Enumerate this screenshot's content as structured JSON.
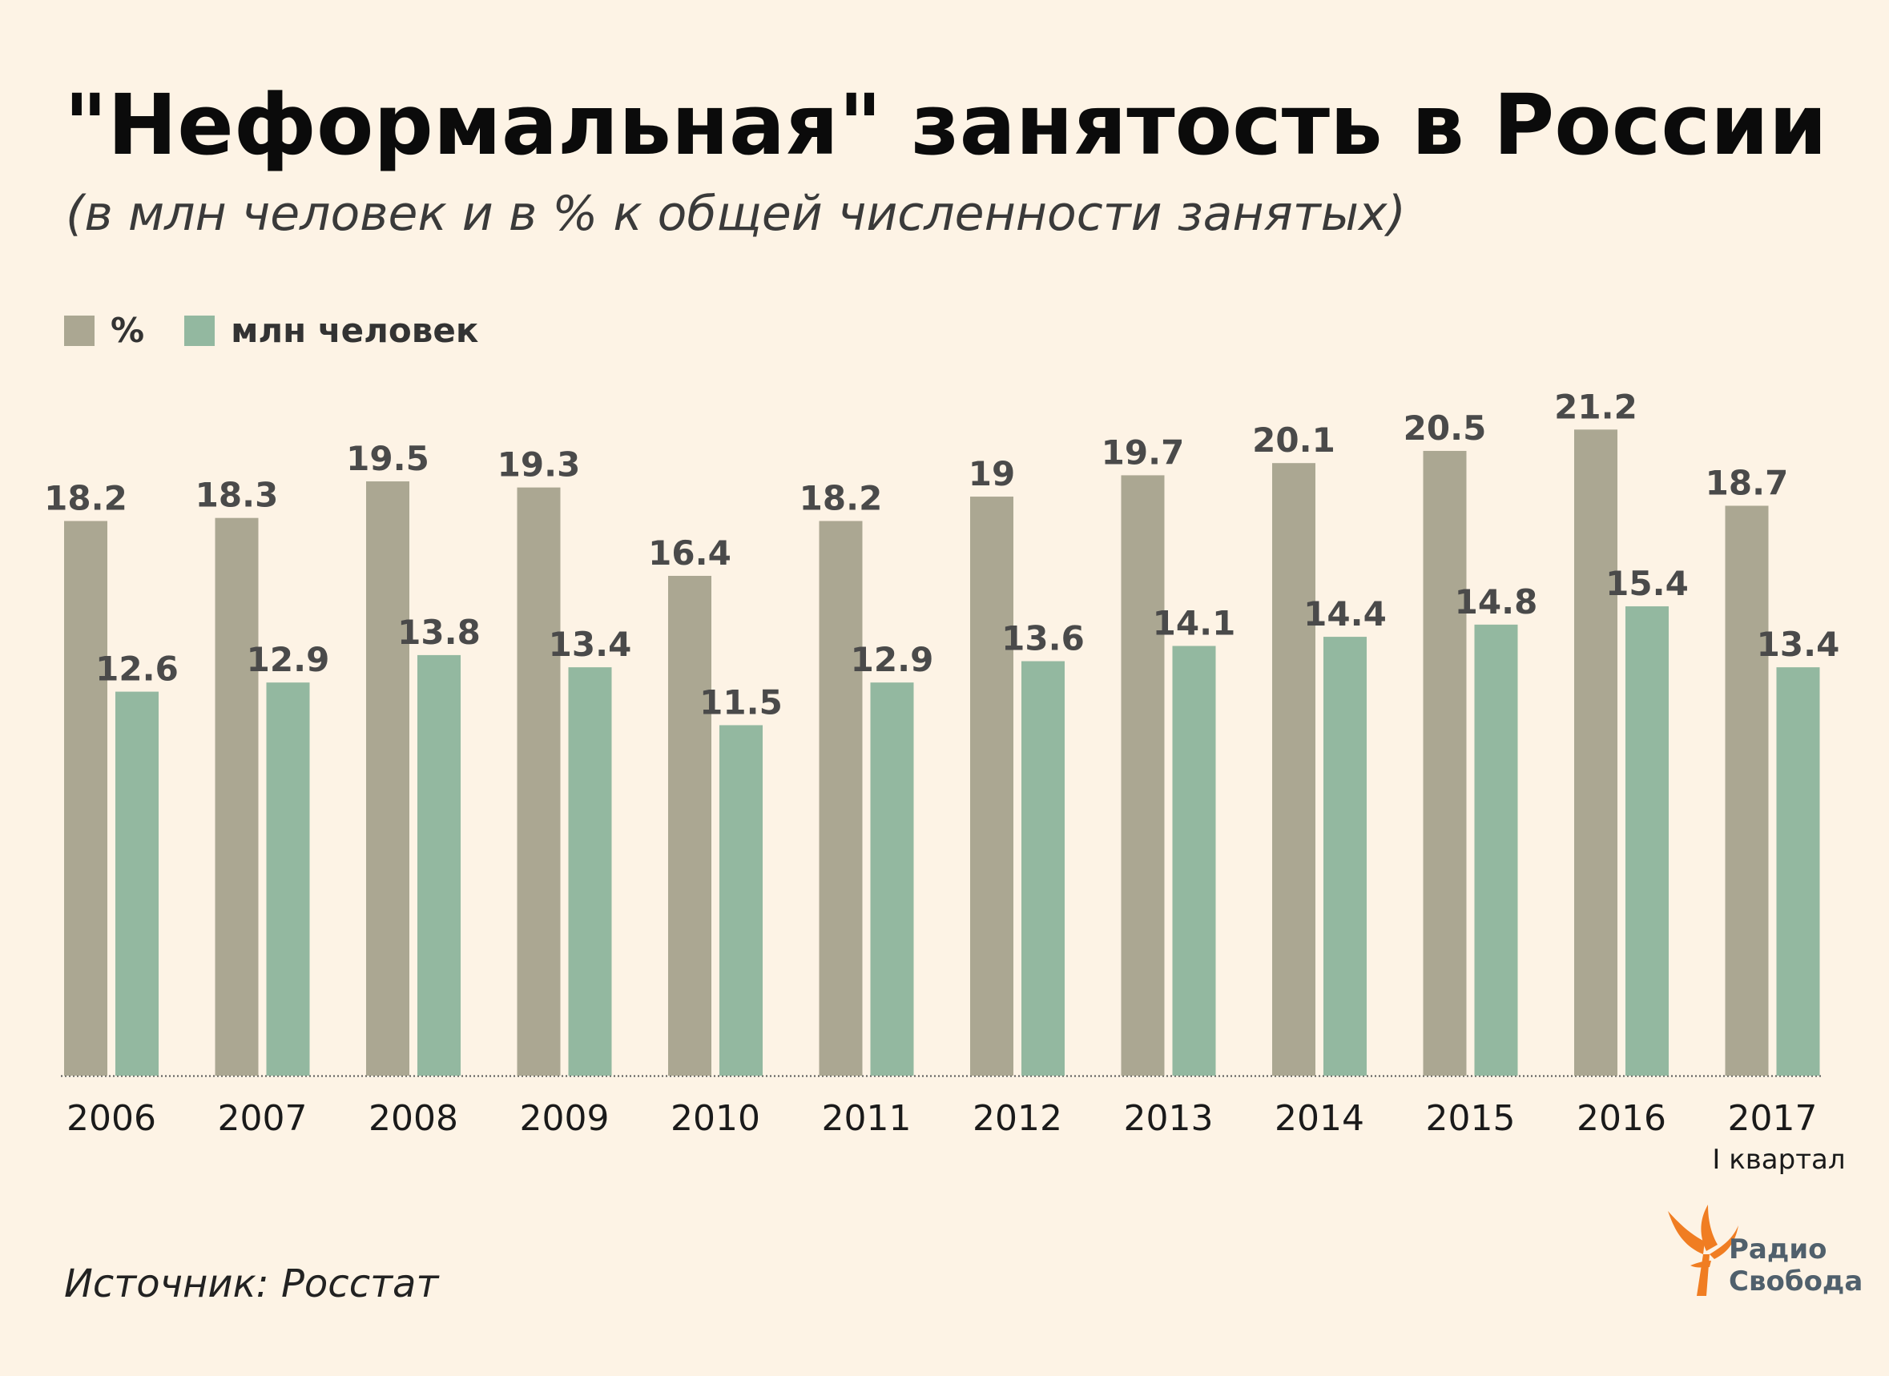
{
  "title": "\"Неформальная\" занятость в России",
  "subtitle": "(в млн человек и в % к общей численности занятых)",
  "legend": {
    "percent_label": "%",
    "millions_label": "млн человек"
  },
  "colors": {
    "percent": "#aba792",
    "millions": "#93b8a0",
    "background": "#fdf3e5",
    "label": "#4a4a4a"
  },
  "chart_data": {
    "type": "bar",
    "title": "\"Неформальная\" занятость в России",
    "categories": [
      "2006",
      "2007",
      "2008",
      "2009",
      "2010",
      "2011",
      "2012",
      "2013",
      "2014",
      "2015",
      "2016",
      "2017"
    ],
    "category_notes": {
      "2017": "I квартал"
    },
    "series": [
      {
        "name": "%",
        "values": [
          18.2,
          18.3,
          19.5,
          19.3,
          16.4,
          18.2,
          19,
          19.7,
          20.1,
          20.5,
          21.2,
          18.7
        ]
      },
      {
        "name": "млн человек",
        "values": [
          12.6,
          12.9,
          13.8,
          13.4,
          11.5,
          12.9,
          13.6,
          14.1,
          14.4,
          14.8,
          15.4,
          13.4
        ]
      }
    ],
    "xlabel": "",
    "ylabel": "",
    "ylim": [
      0,
      25
    ]
  },
  "source": "Источник: Росстат",
  "logo": {
    "line1": "Радио",
    "line2": "Свобода"
  }
}
